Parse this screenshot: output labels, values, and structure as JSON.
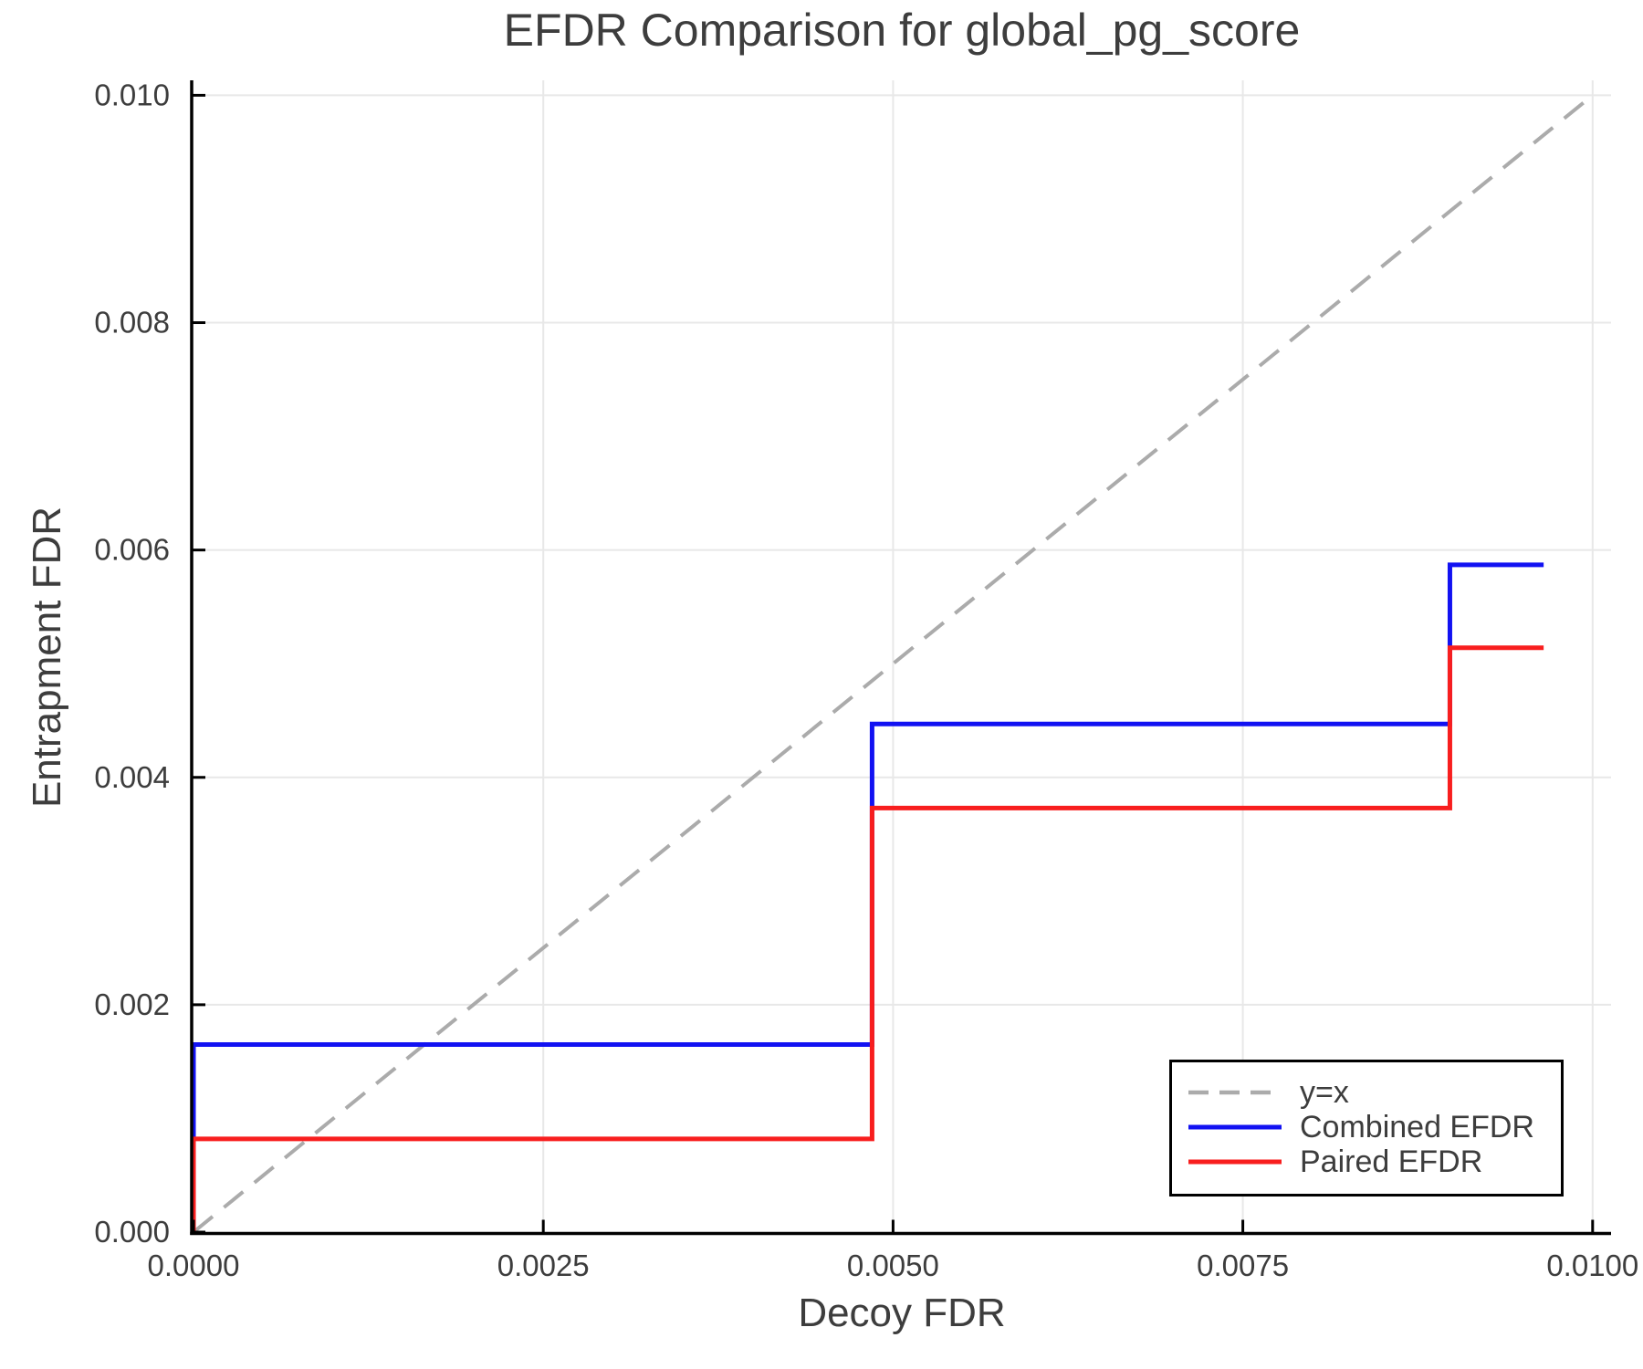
{
  "title": "EFDR Comparison for global_pg_score",
  "axes": {
    "xlabel": "Decoy FDR",
    "ylabel": "Entrapment FDR"
  },
  "legend": {
    "entries": [
      {
        "id": "identity",
        "label": "y=x",
        "color": "#ababab",
        "dash": true
      },
      {
        "id": "combined",
        "label": "Combined EFDR",
        "color": "#1212f2",
        "dash": false
      },
      {
        "id": "paired",
        "label": "Paired EFDR",
        "color": "#f81e1e",
        "dash": false
      }
    ]
  },
  "chart_data": {
    "type": "line",
    "title": "EFDR Comparison for global_pg_score",
    "xlabel": "Decoy FDR",
    "ylabel": "Entrapment FDR",
    "xlim": [
      0,
      0.0101
    ],
    "ylim": [
      0,
      0.0101
    ],
    "grid": true,
    "grid_color": "#e8e8e8",
    "legend_position": "lower right",
    "x_ticks": [
      0,
      0.0025,
      0.005,
      0.0075,
      0.01
    ],
    "x_tick_labels": [
      "0.0000",
      "0.0025",
      "0.0050",
      "0.0075",
      "0.0100"
    ],
    "y_ticks": [
      0,
      0.002,
      0.004,
      0.006,
      0.008,
      0.01
    ],
    "y_tick_labels": [
      "0.000",
      "0.002",
      "0.004",
      "0.006",
      "0.008",
      "0.010"
    ],
    "series": [
      {
        "id": "identity",
        "name": "y=x",
        "style": "dashed",
        "color": "#ababab",
        "points": [
          [
            0,
            0
          ],
          [
            0.01,
            0.01
          ]
        ]
      },
      {
        "id": "combined",
        "name": "Combined EFDR",
        "style": "solid",
        "color": "#1212f2",
        "points": [
          [
            0,
            0
          ],
          [
            0,
            0.00165
          ],
          [
            0.00485,
            0.00165
          ],
          [
            0.00485,
            0.00447
          ],
          [
            0.00898,
            0.00447
          ],
          [
            0.00898,
            0.00587
          ],
          [
            0.00965,
            0.00587
          ]
        ]
      },
      {
        "id": "paired",
        "name": "Paired EFDR",
        "style": "solid",
        "color": "#f81e1e",
        "points": [
          [
            0,
            0
          ],
          [
            0,
            0.00082
          ],
          [
            0.00485,
            0.00082
          ],
          [
            0.00485,
            0.00373
          ],
          [
            0.00898,
            0.00373
          ],
          [
            0.00898,
            0.00514
          ],
          [
            0.00965,
            0.00514
          ]
        ]
      }
    ]
  }
}
